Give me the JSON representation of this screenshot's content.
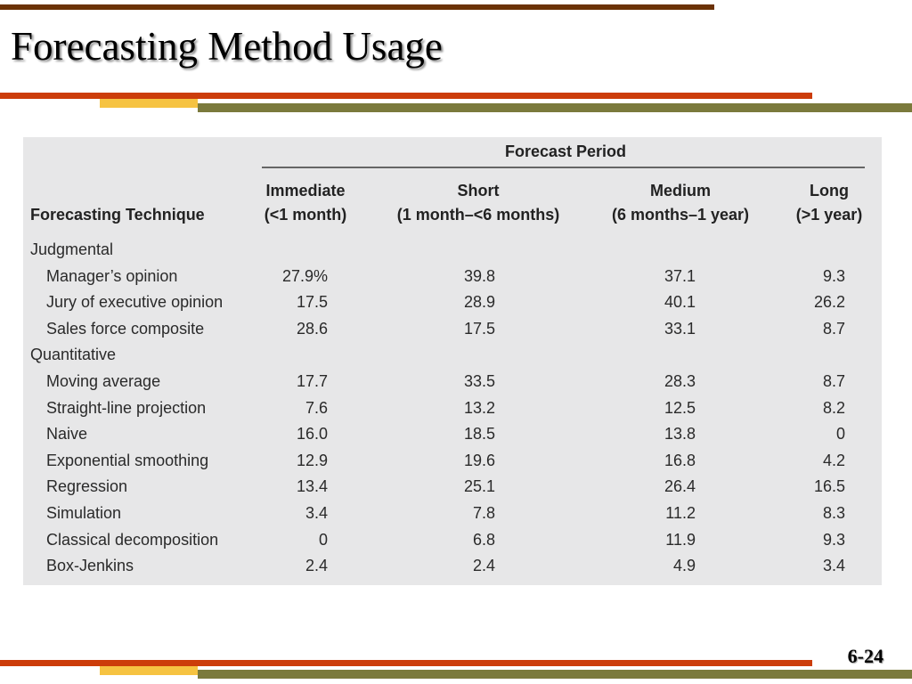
{
  "slide": {
    "title": "Forecasting Method Usage",
    "page_number": "6-24",
    "colors": {
      "brown": "#6b3206",
      "orange_red": "#cc3d0a",
      "yellow": "#f6c342",
      "olive": "#7b7a3c",
      "table_bg": "#e7e7e8"
    }
  },
  "table": {
    "period_header": "Forecast Period",
    "technique_header": "Forecasting Technique",
    "columns": [
      {
        "line1": "Immediate",
        "line2": "(<1 month)"
      },
      {
        "line1": "Short",
        "line2": "(1 month–<6 months)"
      },
      {
        "line1": "Medium",
        "line2": "(6 months–1 year)"
      },
      {
        "line1": "Long",
        "line2": "(>1 year)"
      }
    ],
    "groups": [
      {
        "name": "Judgmental",
        "rows": [
          {
            "label": "Manager’s opinion",
            "values": [
              "27.9%",
              "39.8",
              "37.1",
              "9.3"
            ]
          },
          {
            "label": "Jury of executive opinion",
            "values": [
              "17.5",
              "28.9",
              "40.1",
              "26.2"
            ]
          },
          {
            "label": "Sales force composite",
            "values": [
              "28.6",
              "17.5",
              "33.1",
              "8.7"
            ]
          }
        ]
      },
      {
        "name": "Quantitative",
        "rows": [
          {
            "label": "Moving average",
            "values": [
              "17.7",
              "33.5",
              "28.3",
              "8.7"
            ]
          },
          {
            "label": "Straight-line projection",
            "values": [
              "7.6",
              "13.2",
              "12.5",
              "8.2"
            ]
          },
          {
            "label": "Naive",
            "values": [
              "16.0",
              "18.5",
              "13.8",
              "0"
            ]
          },
          {
            "label": "Exponential smoothing",
            "values": [
              "12.9",
              "19.6",
              "16.8",
              "4.2"
            ]
          },
          {
            "label": "Regression",
            "values": [
              "13.4",
              "25.1",
              "26.4",
              "16.5"
            ]
          },
          {
            "label": "Simulation",
            "values": [
              "3.4",
              "7.8",
              "11.2",
              "8.3"
            ]
          },
          {
            "label": "Classical decomposition",
            "values": [
              "0",
              "6.8",
              "11.9",
              "9.3"
            ]
          },
          {
            "label": "Box-Jenkins",
            "values": [
              "2.4",
              "2.4",
              "4.9",
              "3.4"
            ]
          }
        ]
      }
    ]
  }
}
